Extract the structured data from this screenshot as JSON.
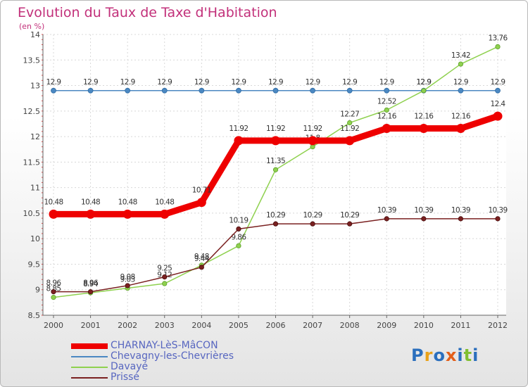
{
  "chart_data": {
    "type": "line",
    "title": "Evolution du Taux de Taxe d'Habitation",
    "ylabel": "(en %)",
    "xlabel": "",
    "categories": [
      "2000",
      "2001",
      "2002",
      "2003",
      "2004",
      "2005",
      "2006",
      "2007",
      "2008",
      "2009",
      "2010",
      "2011",
      "2012"
    ],
    "ylim": [
      8.5,
      14
    ],
    "yticks": [
      8.5,
      9,
      9.5,
      10,
      10.5,
      11,
      11.5,
      12,
      12.5,
      13,
      13.5,
      14
    ],
    "ytick_labels": [
      "8.5",
      "9",
      "9.5",
      "10",
      "10.5",
      "11",
      "11.5",
      "12",
      "12.5",
      "13",
      "13.5",
      "14"
    ],
    "grid": true,
    "series": [
      {
        "name": "Chevagny-les-Chevrières",
        "color": "#4b88c2",
        "values": [
          12.9,
          12.9,
          12.9,
          12.9,
          12.9,
          12.9,
          12.9,
          12.9,
          12.9,
          12.9,
          12.9,
          12.9,
          12.9
        ],
        "labels": [
          "12.9",
          "12.9",
          "12.9",
          "12.9",
          "12.9",
          "12.9",
          "12.9",
          "12.9",
          "12.9",
          "12.9",
          "12.9",
          "12.9",
          "12.9"
        ]
      },
      {
        "name": "Davayé",
        "color": "#8fd14f",
        "values": [
          8.85,
          8.94,
          9.03,
          9.12,
          9.48,
          9.86,
          11.35,
          11.8,
          12.27,
          12.52,
          12.9,
          13.42,
          13.76
        ],
        "labels": [
          "8.85",
          "8.94",
          "9.03",
          "9.12",
          "9.48",
          "9.86",
          "11.35",
          "11.8",
          "12.27",
          "12.52",
          "12.9",
          "13.42",
          "13.76"
        ]
      },
      {
        "name": "Prissé",
        "color": "#7a2020",
        "values": [
          8.96,
          8.96,
          9.08,
          9.25,
          9.44,
          10.19,
          10.29,
          10.29,
          10.29,
          10.39,
          10.39,
          10.39,
          10.39
        ],
        "labels": [
          "8.96",
          "8.96",
          "9.08",
          "9.25",
          "9.44",
          "10.19",
          "10.29",
          "10.29",
          "10.29",
          "10.39",
          "10.39",
          "10.39",
          "10.39"
        ]
      },
      {
        "name": "CHARNAY-LèS-MâCON",
        "color": "#ee0000",
        "values": [
          10.48,
          10.48,
          10.48,
          10.48,
          10.71,
          11.92,
          11.92,
          11.92,
          11.92,
          12.16,
          12.16,
          12.16,
          12.4
        ],
        "labels": [
          "10.48",
          "10.48",
          "10.48",
          "10.48",
          "10.71",
          "11.92",
          "11.92",
          "11.92",
          "11.92",
          "12.16",
          "12.16",
          "12.16",
          "12.4"
        ]
      }
    ]
  },
  "legend": [
    {
      "label": "CHARNAY-LèS-MâCON",
      "color": "#ee0000"
    },
    {
      "label": "Chevagny-les-Chevrières",
      "color": "#4b88c2"
    },
    {
      "label": "Davayé",
      "color": "#8fd14f"
    },
    {
      "label": "Prissé",
      "color": "#7a2020"
    }
  ],
  "logo": {
    "text": "Proxiti",
    "letters": [
      "P",
      "r",
      "o",
      "x",
      "i",
      "t",
      "i"
    ],
    "colors": [
      "#2b6fbd",
      "#e9a21a",
      "#2b6fbd",
      "#e35f1a",
      "#2b6fbd",
      "#82bf31",
      "#2b6fbd"
    ]
  }
}
